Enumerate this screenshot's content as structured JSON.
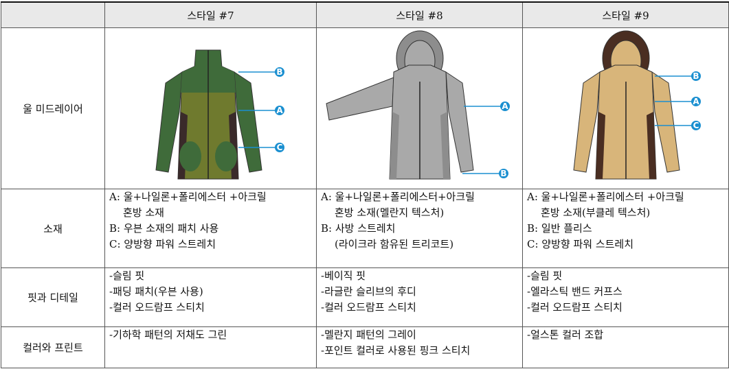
{
  "table": {
    "columns": [
      "스타일 #7",
      "스타일 #8",
      "스타일 #9"
    ],
    "image_row": {
      "label": "울 미드레이어",
      "callouts": [
        [
          "B",
          "A",
          "C"
        ],
        [
          "A",
          "B"
        ],
        [
          "B",
          "A",
          "C"
        ]
      ]
    },
    "rows": [
      {
        "label": "소재",
        "cells": [
          [
            "A: 울+나일론+폴리에스터 +아크릴",
            "혼방 소재",
            "B: 우븐 소재의 패치 사용",
            "C: 양방향 파워 스트레치"
          ],
          [
            "A: 울+나일론+폴리에스터+아크릴",
            "혼방 소재(멜란지 텍스처)",
            "B: 사방 스트레치",
            "(라이크라 함유된 트리코트)"
          ],
          [
            "A: 울+나일론+폴리에스터 +아크릴",
            "혼방 소재(부클레 텍스처)",
            "B: 일반 플리스",
            "C: 양방향 파워 스트레치"
          ]
        ]
      },
      {
        "label": "핏과 디테일",
        "cells": [
          [
            "-슬림 핏",
            "-패딩 패치(우븐 사용)",
            "-컬러 오드람프 스티치"
          ],
          [
            "-베이직 핏",
            "-라글란 슬리브의 후디",
            "-컬러 오드람프 스티치"
          ],
          [
            "-슬림 핏",
            "-엘라스틱 밴드 커프스",
            "-컬러 오드람프 스티치"
          ]
        ]
      },
      {
        "label": "컬러와 프린트",
        "cells": [
          [
            "-기하학 패턴의 저채도 그린"
          ],
          [
            "-멜란지 패턴의 그레이",
            "-포인트 컬러로 사용된 핑크 스티치"
          ],
          [
            "-얼스톤 컬러 조합"
          ]
        ]
      }
    ]
  }
}
